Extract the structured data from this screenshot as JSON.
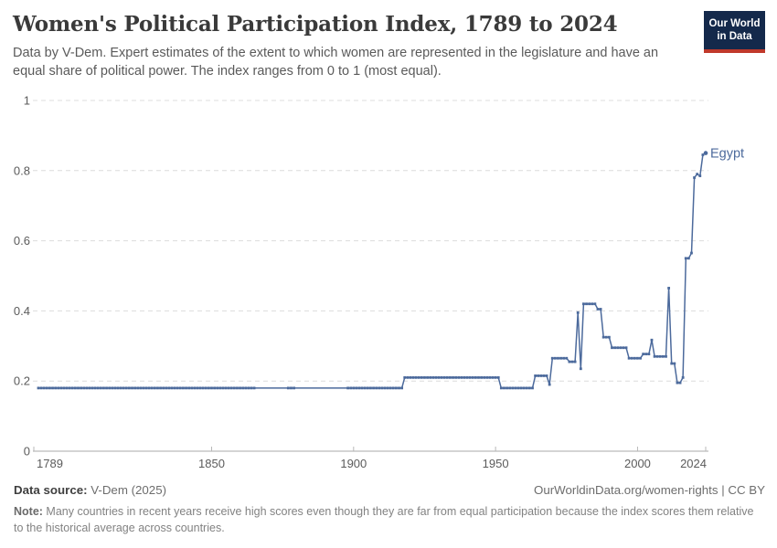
{
  "header": {
    "title": "Women's Political Participation Index, 1789 to 2024",
    "subtitle": "Data by V-Dem. Expert estimates of the extent to which women are represented in the legislature and have an equal share of political power. The index ranges from 0 to 1 (most equal).",
    "logo": {
      "line1": "Our World",
      "line2": "in Data"
    }
  },
  "footer": {
    "source_label": "Data source:",
    "source_value": " V-Dem (2025)",
    "link_text": "OurWorldinData.org/women-rights | CC BY",
    "note_label": "Note:",
    "note_value": " Many countries in recent years receive high scores even though they are far from equal participation because the index scores them relative to the historical average across countries."
  },
  "colors": {
    "line": "#4C6A9C",
    "logo_background": "#14294b",
    "logo_accent_red": "#c0392b",
    "gridline": "#dcdcdc",
    "axis": "#a8a8a8",
    "tick_label": "#5b5b5b"
  },
  "chart_data": {
    "type": "line",
    "title": "Women's Political Participation Index, 1789 to 2024",
    "xlabel": "",
    "ylabel": "",
    "xlim": [
      1789,
      2024
    ],
    "ylim": [
      0,
      1
    ],
    "x_ticks": [
      1789,
      1850,
      1900,
      1950,
      2000,
      2024
    ],
    "y_ticks": [
      0,
      0.2,
      0.4,
      0.6,
      0.8,
      1
    ],
    "grid": "horizontal-dashed",
    "legend_position": "end-of-line-label",
    "end_label": "Egypt",
    "marker_gaps": [
      [
        1866,
        1876
      ],
      [
        1880,
        1897
      ]
    ],
    "series": [
      {
        "name": "Egypt",
        "color": "#4C6A9C",
        "points": [
          [
            1789,
            0.18
          ],
          [
            1917,
            0.18
          ],
          [
            1918,
            0.21
          ],
          [
            1951,
            0.21
          ],
          [
            1952,
            0.18
          ],
          [
            1963,
            0.18
          ],
          [
            1964,
            0.215
          ],
          [
            1968,
            0.215
          ],
          [
            1969,
            0.19
          ],
          [
            1970,
            0.265
          ],
          [
            1975,
            0.265
          ],
          [
            1976,
            0.255
          ],
          [
            1978,
            0.255
          ],
          [
            1979,
            0.395
          ],
          [
            1980,
            0.235
          ],
          [
            1981,
            0.42
          ],
          [
            1985,
            0.42
          ],
          [
            1986,
            0.405
          ],
          [
            1987,
            0.405
          ],
          [
            1988,
            0.325
          ],
          [
            1990,
            0.325
          ],
          [
            1991,
            0.295
          ],
          [
            1996,
            0.295
          ],
          [
            1997,
            0.265
          ],
          [
            2001,
            0.265
          ],
          [
            2002,
            0.277
          ],
          [
            2004,
            0.277
          ],
          [
            2005,
            0.317
          ],
          [
            2006,
            0.27
          ],
          [
            2010,
            0.27
          ],
          [
            2011,
            0.465
          ],
          [
            2012,
            0.25
          ],
          [
            2013,
            0.25
          ],
          [
            2014,
            0.195
          ],
          [
            2015,
            0.195
          ],
          [
            2016,
            0.21
          ],
          [
            2017,
            0.55
          ],
          [
            2018,
            0.55
          ],
          [
            2019,
            0.565
          ],
          [
            2020,
            0.78
          ],
          [
            2021,
            0.79
          ],
          [
            2022,
            0.785
          ],
          [
            2023,
            0.845
          ],
          [
            2024,
            0.85
          ]
        ]
      }
    ]
  }
}
